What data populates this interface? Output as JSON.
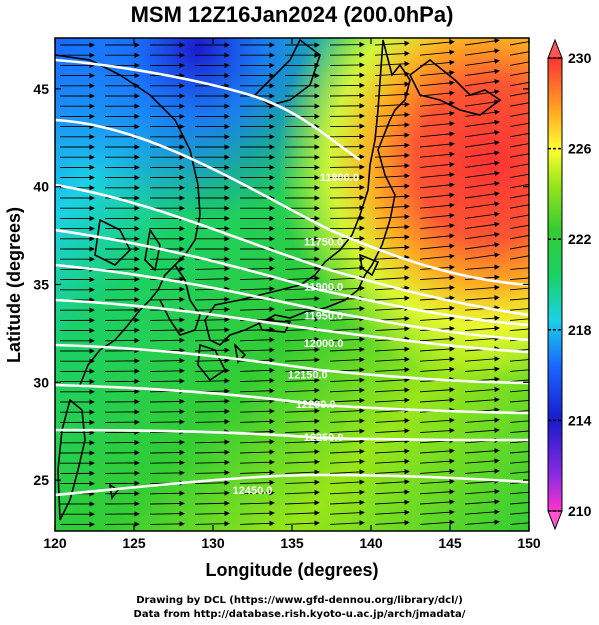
{
  "title": "MSM 12Z16Jan2024 (200.0hPa)",
  "xlabel": "Longitude (degrees)",
  "ylabel": "Latitude  (degrees)",
  "credit_line1": "Drawing by DCL (https://www.gfd-dennou.org/library/dcl/)",
  "credit_line2": "Data from http://database.rish.kyoto-u.ac.jp/arch/jmadata/",
  "map": {
    "lon_range": [
      120,
      150
    ],
    "lat_range": [
      22.4,
      47.6
    ],
    "lon_ticks": [
      120,
      125,
      130,
      135,
      140,
      145,
      150
    ],
    "lat_ticks": [
      25,
      30,
      35,
      40,
      45
    ]
  },
  "colorbar": {
    "range": [
      210,
      230
    ],
    "ticks": [
      210,
      214,
      218,
      222,
      226,
      230
    ],
    "colors": [
      "#ff33cc",
      "#8a2be2",
      "#1a1acc",
      "#1a66ff",
      "#1ad1e6",
      "#1ad166",
      "#33cc33",
      "#99e619",
      "#ffff33",
      "#ffcc1a",
      "#ff8033",
      "#ff3333"
    ]
  },
  "contours": [
    {
      "label": "11750.0",
      "lon": 137.0,
      "lat": 37.0
    },
    {
      "label": "11800.0",
      "lon": 138.0,
      "lat": 40.3
    },
    {
      "label": "11900.0",
      "lon": 137.0,
      "lat": 34.7
    },
    {
      "label": "11950.0",
      "lon": 137.0,
      "lat": 33.2
    },
    {
      "label": "12000.0",
      "lon": 137.0,
      "lat": 31.8
    },
    {
      "label": "12150.0",
      "lon": 136.0,
      "lat": 30.2
    },
    {
      "label": "12200.0",
      "lon": 136.5,
      "lat": 28.7
    },
    {
      "label": "12250.0",
      "lon": 137.0,
      "lat": 27.0
    },
    {
      "label": "12450.0",
      "lon": 132.5,
      "lat": 24.3
    }
  ]
}
